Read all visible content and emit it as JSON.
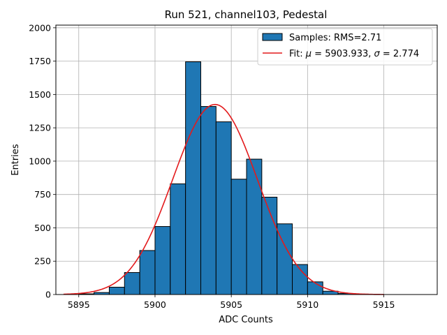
{
  "chart_data": {
    "type": "bar",
    "title": "Run 521, channel103, Pedestal",
    "xlabel": "ADC Counts",
    "ylabel": "Entries",
    "xlim": [
      5893.5,
      5918.5
    ],
    "ylim": [
      0,
      2020
    ],
    "xticks": [
      5895,
      5900,
      5905,
      5910,
      5915
    ],
    "yticks": [
      0,
      250,
      500,
      750,
      1000,
      1250,
      1500,
      1750,
      2000
    ],
    "grid": true,
    "legend_position": "top-right",
    "histogram": {
      "name": "Samples: RMS=2.71",
      "color": "#1f77b4",
      "edge_color": "#000000",
      "bin_width": 1,
      "bins": [
        {
          "left": 5895,
          "count": 5
        },
        {
          "left": 5896,
          "count": 15
        },
        {
          "left": 5897,
          "count": 55
        },
        {
          "left": 5898,
          "count": 165
        },
        {
          "left": 5899,
          "count": 330
        },
        {
          "left": 5900,
          "count": 510
        },
        {
          "left": 5901,
          "count": 830
        },
        {
          "left": 5902,
          "count": 1745
        },
        {
          "left": 5903,
          "count": 1410
        },
        {
          "left": 5904,
          "count": 1295
        },
        {
          "left": 5905,
          "count": 865
        },
        {
          "left": 5906,
          "count": 1015
        },
        {
          "left": 5907,
          "count": 730
        },
        {
          "left": 5908,
          "count": 530
        },
        {
          "left": 5909,
          "count": 225
        },
        {
          "left": 5910,
          "count": 95
        },
        {
          "left": 5911,
          "count": 25
        },
        {
          "left": 5912,
          "count": 8
        },
        {
          "left": 5913,
          "count": 3
        }
      ]
    },
    "fit": {
      "legend_prefix": "Fit: ",
      "legend_mu_symbol": "μ",
      "legend_eq1": " = 5903.933, ",
      "legend_sigma_symbol": "σ",
      "legend_eq2": " = 2.774",
      "color": "#e31a1c",
      "mu": 5903.933,
      "sigma": 2.774,
      "amplitude": 1425,
      "x_range": [
        5894,
        5915
      ]
    }
  }
}
